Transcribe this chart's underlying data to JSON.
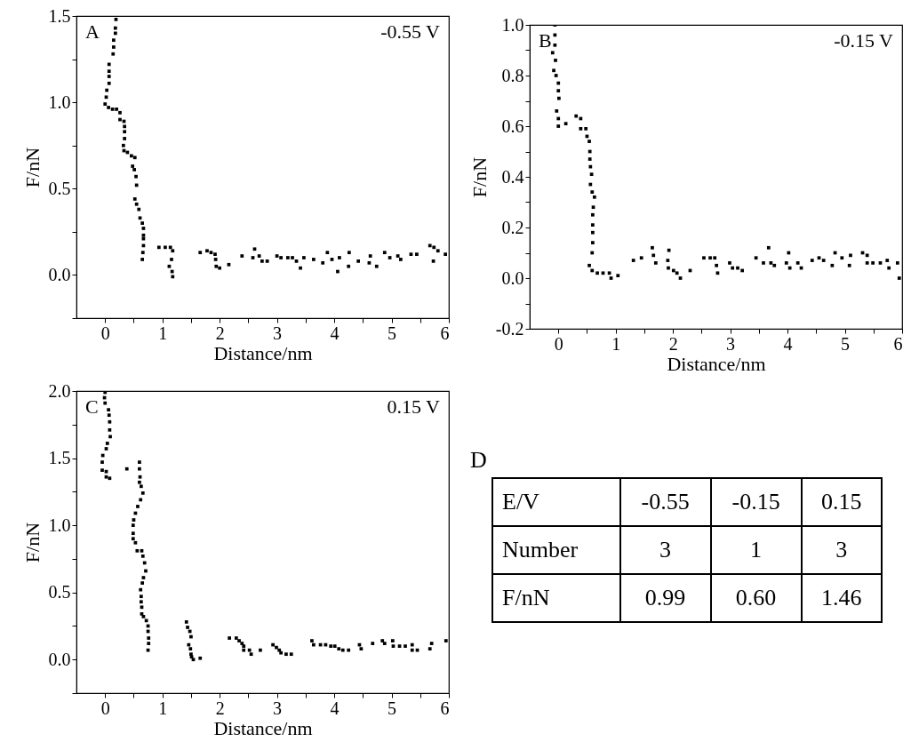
{
  "chart_data": [
    {
      "type": "scatter",
      "xlabel": "Distance/nm",
      "ylabel": "F/nN",
      "annotations": [
        "A",
        "-0.55 V"
      ],
      "marker": "square",
      "color": "#000000",
      "grid": false,
      "xlim": [
        -0.5,
        6
      ],
      "ylim": [
        -0.25,
        1.5
      ],
      "xticks": [
        0,
        {
          "value": 0.5,
          "label": null
        },
        1,
        {
          "value": 1.5,
          "label": null
        },
        2,
        {
          "value": 2.5,
          "label": null
        },
        3,
        {
          "value": 3.5,
          "label": null
        },
        4,
        {
          "value": 4.5,
          "label": null
        },
        5,
        {
          "value": 5.5,
          "label": null
        },
        6
      ],
      "yticks": [
        {
          "value": -0.25,
          "label": null
        },
        {
          "value": 0,
          "label": "0.0"
        },
        {
          "value": 0.25,
          "label": null
        },
        0.5,
        {
          "value": 0.75,
          "label": null
        },
        {
          "value": 1,
          "label": "1.0"
        },
        {
          "value": 1.25,
          "label": null
        },
        1.5
      ],
      "x": [
        0.19,
        0.18,
        0.18,
        0.15,
        0.15,
        0.14,
        0.07,
        0.07,
        0.07,
        0.07,
        0.03,
        0.02,
        0.0,
        0.06,
        0.13,
        0.2,
        0.26,
        0.26,
        0.33,
        0.34,
        0.34,
        0.34,
        0.32,
        0.33,
        0.39,
        0.46,
        0.52,
        0.48,
        0.51,
        0.54,
        0.55,
        0.52,
        0.55,
        0.59,
        0.61,
        0.65,
        0.67,
        0.67,
        0.67,
        0.67,
        0.66,
        0.65,
        0.94,
        1.05,
        1.14,
        1.18,
        1.16,
        1.12,
        1.17,
        1.18,
        1.66,
        1.78,
        1.85,
        1.92,
        1.93,
        1.94,
        2.0,
        2.16,
        2.39,
        2.58,
        2.61,
        2.69,
        2.74,
        2.83,
        3.0,
        3.07,
        3.19,
        3.27,
        3.34,
        3.41,
        3.47,
        3.64,
        3.8,
        3.88,
        3.96,
        4.06,
        4.09,
        4.25,
        4.26,
        4.42,
        4.61,
        4.63,
        4.74,
        4.88,
        4.97,
        5.11,
        5.16,
        5.34,
        5.44,
        5.67,
        5.73,
        5.74,
        5.81,
        5.94
      ],
      "values": [
        1.48,
        1.43,
        1.4,
        1.36,
        1.32,
        1.28,
        1.22,
        1.18,
        1.15,
        1.11,
        1.07,
        1.03,
        0.99,
        0.97,
        0.96,
        0.96,
        0.94,
        0.9,
        0.89,
        0.86,
        0.83,
        0.79,
        0.75,
        0.72,
        0.71,
        0.69,
        0.68,
        0.63,
        0.61,
        0.57,
        0.52,
        0.44,
        0.41,
        0.38,
        0.33,
        0.3,
        0.27,
        0.23,
        0.21,
        0.17,
        0.13,
        0.09,
        0.16,
        0.16,
        0.16,
        0.14,
        0.09,
        0.05,
        0.02,
        -0.01,
        0.13,
        0.14,
        0.13,
        0.12,
        0.09,
        0.05,
        0.04,
        0.06,
        0.11,
        0.1,
        0.15,
        0.11,
        0.08,
        0.08,
        0.11,
        0.1,
        0.1,
        0.1,
        0.08,
        0.04,
        0.1,
        0.09,
        0.07,
        0.13,
        0.09,
        0.02,
        0.1,
        0.05,
        0.13,
        0.08,
        0.07,
        0.11,
        0.05,
        0.13,
        0.1,
        0.11,
        0.09,
        0.12,
        0.12,
        0.17,
        0.08,
        0.16,
        0.14,
        0.12
      ]
    },
    {
      "type": "scatter",
      "xlabel": "Distance/nm",
      "ylabel": "F/nN",
      "annotations": [
        "B",
        "-0.15 V"
      ],
      "marker": "square",
      "color": "#000000",
      "grid": false,
      "xlim": [
        -0.5,
        6
      ],
      "ylim": [
        -0.2,
        1.0
      ],
      "xticks": [
        0,
        {
          "value": 0.5,
          "label": null
        },
        1,
        {
          "value": 1.5,
          "label": null
        },
        2,
        {
          "value": 2.5,
          "label": null
        },
        3,
        {
          "value": 3.5,
          "label": null
        },
        4,
        {
          "value": 4.5,
          "label": null
        },
        5,
        {
          "value": 5.5,
          "label": null
        },
        6
      ],
      "yticks": [
        -0.2,
        {
          "value": -0.1,
          "label": null
        },
        {
          "value": 0,
          "label": "0.0"
        },
        {
          "value": 0.1,
          "label": null
        },
        0.2,
        {
          "value": 0.3,
          "label": null
        },
        0.4,
        {
          "value": 0.5,
          "label": null
        },
        0.6,
        {
          "value": 0.7,
          "label": null
        },
        0.8,
        {
          "value": 0.9,
          "label": null
        },
        {
          "value": 1,
          "label": "1.0"
        }
      ],
      "x": [
        -0.06,
        -0.06,
        -0.06,
        -0.1,
        -0.05,
        -0.08,
        -0.04,
        0.0,
        0.0,
        0.01,
        -0.03,
        0.0,
        0.0,
        0.13,
        0.31,
        0.39,
        0.39,
        0.48,
        0.5,
        0.54,
        0.55,
        0.55,
        0.56,
        0.58,
        0.56,
        0.59,
        0.63,
        0.61,
        0.6,
        0.6,
        0.6,
        0.6,
        0.59,
        0.54,
        0.59,
        0.68,
        0.78,
        0.89,
        0.92,
        1.04,
        1.31,
        1.45,
        1.64,
        1.66,
        1.7,
        1.93,
        1.91,
        1.92,
        2.01,
        2.07,
        2.13,
        2.3,
        2.54,
        2.65,
        2.73,
        2.76,
        2.78,
        2.99,
        3.04,
        3.13,
        3.21,
        3.45,
        3.58,
        3.67,
        3.71,
        3.77,
        3.98,
        4.02,
        4.04,
        4.18,
        4.24,
        4.43,
        4.55,
        4.63,
        4.78,
        4.83,
        4.95,
        5.08,
        5.1,
        5.31,
        5.39,
        5.39,
        5.49,
        5.62,
        5.74,
        5.77,
        5.92,
        5.95
      ],
      "values": [
        1.0,
        0.96,
        0.92,
        0.89,
        0.86,
        0.82,
        0.8,
        0.77,
        0.74,
        0.71,
        0.66,
        0.63,
        0.6,
        0.61,
        0.64,
        0.63,
        0.59,
        0.59,
        0.56,
        0.54,
        0.5,
        0.47,
        0.44,
        0.41,
        0.37,
        0.34,
        0.32,
        0.28,
        0.25,
        0.21,
        0.18,
        0.14,
        0.1,
        0.05,
        0.03,
        0.02,
        0.02,
        0.02,
        0.0,
        0.01,
        0.07,
        0.08,
        0.12,
        0.09,
        0.06,
        0.11,
        0.07,
        0.04,
        0.03,
        0.02,
        0.0,
        0.03,
        0.08,
        0.08,
        0.08,
        0.05,
        0.02,
        0.06,
        0.04,
        0.04,
        0.03,
        0.08,
        0.06,
        0.12,
        0.06,
        0.05,
        0.06,
        0.1,
        0.04,
        0.06,
        0.04,
        0.07,
        0.08,
        0.07,
        0.05,
        0.1,
        0.08,
        0.05,
        0.09,
        0.1,
        0.09,
        0.06,
        0.06,
        0.06,
        0.07,
        0.04,
        0.06,
        0.0
      ]
    },
    {
      "type": "scatter",
      "xlabel": "Distance/nm",
      "ylabel": "F/nN",
      "annotations": [
        "C",
        "0.15 V"
      ],
      "marker": "square",
      "color": "#000000",
      "grid": false,
      "xlim": [
        -0.5,
        6
      ],
      "ylim": [
        -0.25,
        2.0
      ],
      "xticks": [
        0,
        {
          "value": 0.5,
          "label": null
        },
        1,
        {
          "value": 1.5,
          "label": null
        },
        2,
        {
          "value": 2.5,
          "label": null
        },
        3,
        {
          "value": 3.5,
          "label": null
        },
        4,
        {
          "value": 4.5,
          "label": null
        },
        5,
        {
          "value": 5.5,
          "label": null
        },
        6
      ],
      "yticks": [
        {
          "value": -0.25,
          "label": null
        },
        {
          "value": 0,
          "label": "0.0"
        },
        {
          "value": 0.25,
          "label": null
        },
        0.5,
        {
          "value": 0.75,
          "label": null
        },
        {
          "value": 1,
          "label": "1.0"
        },
        {
          "value": 1.25,
          "label": null
        },
        1.5,
        {
          "value": 1.75,
          "label": null
        },
        {
          "value": 2,
          "label": "2.0"
        }
      ],
      "x": [
        0.0,
        -0.01,
        0.0,
        0.06,
        0.07,
        0.08,
        0.08,
        0.09,
        0.04,
        0.02,
        -0.04,
        -0.05,
        -0.05,
        0.02,
        0.02,
        0.08,
        0.38,
        0.6,
        0.6,
        0.61,
        0.6,
        0.63,
        0.66,
        0.62,
        0.57,
        0.53,
        0.5,
        0.49,
        0.49,
        0.49,
        0.53,
        0.56,
        0.64,
        0.66,
        0.69,
        0.71,
        0.67,
        0.65,
        0.62,
        0.63,
        0.63,
        0.64,
        0.64,
        0.67,
        0.72,
        0.75,
        0.75,
        0.76,
        0.76,
        0.75,
        1.42,
        1.44,
        1.48,
        1.5,
        1.46,
        1.49,
        1.5,
        1.51,
        1.54,
        1.66,
        2.17,
        2.29,
        2.34,
        2.39,
        2.42,
        2.42,
        2.52,
        2.55,
        2.71,
        2.93,
        2.99,
        3.04,
        3.07,
        3.16,
        3.25,
        3.61,
        3.64,
        3.76,
        3.85,
        3.94,
        4.01,
        4.08,
        4.15,
        4.25,
        4.44,
        4.47,
        4.67,
        4.84,
        4.88,
        5.02,
        5.03,
        5.14,
        5.24,
        5.36,
        5.36,
        5.45,
        5.67,
        5.7,
        5.95
      ],
      "values": [
        1.99,
        1.95,
        1.91,
        1.86,
        1.82,
        1.77,
        1.71,
        1.66,
        1.61,
        1.57,
        1.52,
        1.47,
        1.41,
        1.4,
        1.36,
        1.35,
        1.42,
        1.47,
        1.42,
        1.36,
        1.32,
        1.29,
        1.24,
        1.19,
        1.14,
        1.09,
        1.04,
        1.0,
        0.94,
        0.9,
        0.87,
        0.81,
        0.81,
        0.77,
        0.72,
        0.66,
        0.61,
        0.57,
        0.52,
        0.47,
        0.43,
        0.39,
        0.34,
        0.32,
        0.29,
        0.25,
        0.21,
        0.16,
        0.12,
        0.07,
        0.28,
        0.24,
        0.21,
        0.17,
        0.11,
        0.08,
        0.04,
        0.02,
        0.0,
        0.01,
        0.16,
        0.16,
        0.14,
        0.12,
        0.1,
        0.07,
        0.07,
        0.04,
        0.07,
        0.11,
        0.09,
        0.07,
        0.05,
        0.04,
        0.04,
        0.14,
        0.11,
        0.11,
        0.11,
        0.1,
        0.1,
        0.08,
        0.07,
        0.07,
        0.11,
        0.08,
        0.12,
        0.14,
        0.12,
        0.14,
        0.1,
        0.1,
        0.1,
        0.11,
        0.07,
        0.07,
        0.08,
        0.12,
        0.14
      ]
    },
    {
      "type": "other",
      "title": "D",
      "annotations": [
        "E/V",
        "-0.55",
        "-0.15",
        "0.15",
        "Number",
        "3",
        "1",
        "3",
        "F/nN",
        "0.99",
        "0.60",
        "1.46"
      ]
    }
  ]
}
